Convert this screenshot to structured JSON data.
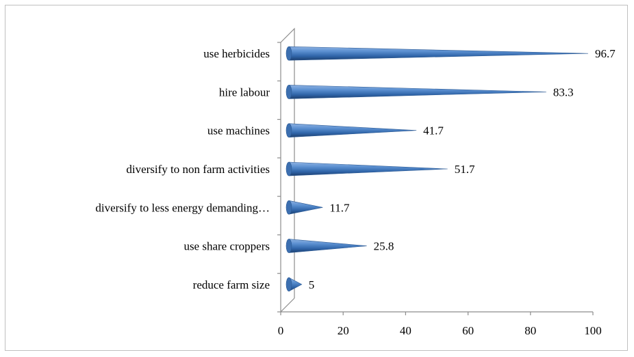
{
  "chart_data": {
    "type": "bar",
    "categories": [
      "use herbicides",
      "hire labour",
      "use machines",
      "diversify to non farm activities",
      "diversify to less energy demanding…",
      "use share croppers",
      "reduce farm size"
    ],
    "values": [
      96.7,
      83.3,
      41.7,
      51.7,
      11.7,
      25.8,
      5
    ],
    "value_labels": [
      "96.7",
      "83.3",
      "41.7",
      "51.7",
      "11.7",
      "25.8",
      "5"
    ],
    "xlim": [
      0,
      100
    ],
    "xticks": [
      0,
      20,
      40,
      60,
      80,
      100
    ],
    "xtick_labels": [
      "0",
      "20",
      "40",
      "60",
      "80",
      "100"
    ],
    "orientation": "horizontal",
    "bar_shape": "cone",
    "bar_color": "#4f81bd",
    "grid": false,
    "legend": "none"
  }
}
